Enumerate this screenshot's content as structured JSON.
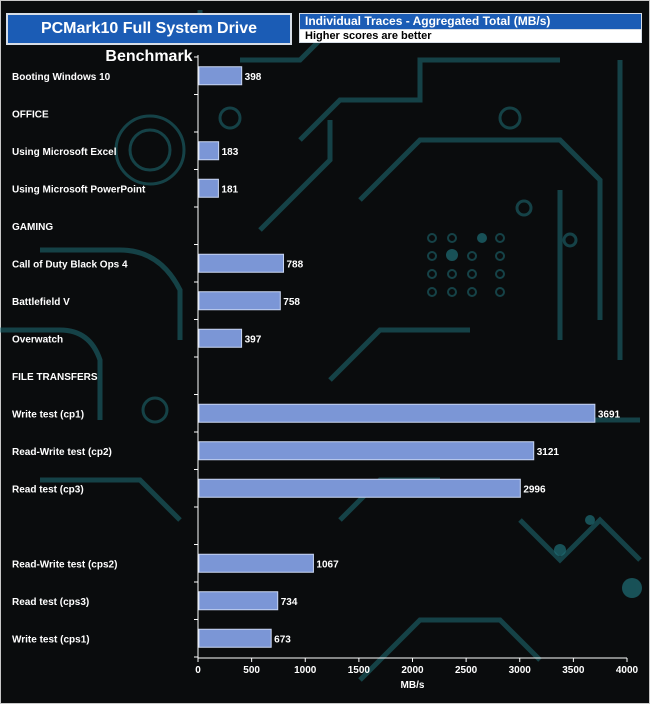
{
  "header": {
    "title": "PCMark10 Full System Drive Benchmark",
    "subtitle": "Individual Traces - Aggregated Total (MB/s)",
    "note": "Higher scores are better"
  },
  "colors": {
    "bar_fill": "#7b96d6",
    "bar_stroke": "#c9d6f2",
    "title_bg": "#1b5cb5",
    "trace": "#1f6f77",
    "text": "#ffffff"
  },
  "chart_data": {
    "type": "bar",
    "orientation": "horizontal",
    "title": "PCMark10 Full System Drive Benchmark",
    "subtitle": "Individual Traces - Aggregated Total (MB/s)",
    "xlabel": "MB/s",
    "ylabel": "",
    "xlim": [
      0,
      4000
    ],
    "xticks": [
      0,
      500,
      1000,
      1500,
      2000,
      2500,
      3000,
      3500,
      4000
    ],
    "grid": false,
    "categories": [
      {
        "label": "Booting Windows 10",
        "value": 398
      },
      {
        "label": "OFFICE",
        "value": null
      },
      {
        "label": "Using Microsoft Excel",
        "value": 183
      },
      {
        "label": "Using Microsoft PowerPoint",
        "value": 181
      },
      {
        "label": "GAMING",
        "value": null
      },
      {
        "label": "Call of Duty Black Ops 4",
        "value": 788
      },
      {
        "label": "Battlefield V",
        "value": 758
      },
      {
        "label": "Overwatch",
        "value": 397
      },
      {
        "label": "FILE TRANSFERS",
        "value": null
      },
      {
        "label": "Write test (cp1)",
        "value": 3691
      },
      {
        "label": "Read-Write test (cp2)",
        "value": 3121
      },
      {
        "label": "Read test (cp3)",
        "value": 2996
      },
      {
        "label": "",
        "value": null
      },
      {
        "label": "Read-Write test (cps2)",
        "value": 1067
      },
      {
        "label": "Read test (cps3)",
        "value": 734
      },
      {
        "label": "Write test (cps1)",
        "value": 673
      }
    ]
  }
}
